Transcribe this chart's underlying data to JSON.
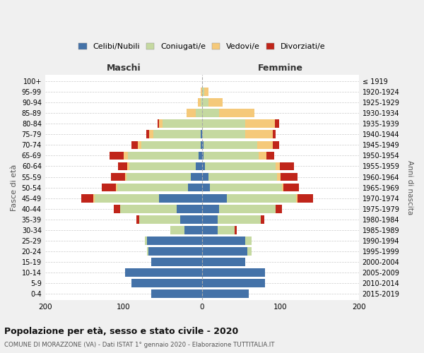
{
  "age_groups": [
    "0-4",
    "5-9",
    "10-14",
    "15-19",
    "20-24",
    "25-29",
    "30-34",
    "35-39",
    "40-44",
    "45-49",
    "50-54",
    "55-59",
    "60-64",
    "65-69",
    "70-74",
    "75-79",
    "80-84",
    "85-89",
    "90-94",
    "95-99",
    "100+"
  ],
  "birth_years": [
    "2015-2019",
    "2010-2014",
    "2005-2009",
    "2000-2004",
    "1995-1999",
    "1990-1994",
    "1985-1989",
    "1980-1984",
    "1975-1979",
    "1970-1974",
    "1965-1969",
    "1960-1964",
    "1955-1959",
    "1950-1954",
    "1945-1949",
    "1940-1944",
    "1935-1939",
    "1930-1934",
    "1925-1929",
    "1920-1924",
    "≤ 1919"
  ],
  "male": {
    "celibi": [
      65,
      90,
      98,
      65,
      68,
      70,
      22,
      28,
      32,
      55,
      18,
      14,
      8,
      4,
      2,
      2,
      0,
      0,
      0,
      0,
      0
    ],
    "coniugati": [
      0,
      0,
      0,
      0,
      2,
      3,
      18,
      52,
      72,
      82,
      90,
      82,
      85,
      90,
      75,
      60,
      50,
      8,
      2,
      0,
      0
    ],
    "vedovi": [
      0,
      0,
      0,
      0,
      0,
      0,
      0,
      0,
      0,
      2,
      2,
      2,
      2,
      6,
      5,
      5,
      5,
      12,
      3,
      2,
      0
    ],
    "divorziati": [
      0,
      0,
      0,
      0,
      0,
      0,
      0,
      4,
      8,
      15,
      18,
      18,
      12,
      18,
      8,
      4,
      2,
      0,
      0,
      0,
      0
    ]
  },
  "female": {
    "nubili": [
      60,
      80,
      80,
      55,
      58,
      55,
      20,
      20,
      22,
      32,
      10,
      8,
      4,
      2,
      2,
      0,
      0,
      0,
      0,
      0,
      0
    ],
    "coniugate": [
      0,
      0,
      0,
      0,
      5,
      8,
      22,
      55,
      72,
      88,
      92,
      88,
      90,
      70,
      68,
      55,
      55,
      22,
      8,
      3,
      0
    ],
    "vedove": [
      0,
      0,
      0,
      0,
      0,
      0,
      0,
      0,
      0,
      2,
      2,
      4,
      5,
      10,
      20,
      35,
      38,
      45,
      18,
      5,
      0
    ],
    "divorziate": [
      0,
      0,
      0,
      0,
      0,
      0,
      2,
      4,
      8,
      20,
      20,
      22,
      18,
      10,
      8,
      4,
      5,
      0,
      0,
      0,
      0
    ]
  },
  "colors": {
    "celibi": "#4472a8",
    "coniugati": "#c5d9a0",
    "vedovi": "#f5c97a",
    "divorziati": "#c0251a"
  },
  "title": "Popolazione per età, sesso e stato civile - 2020",
  "subtitle": "COMUNE DI MORAZZONE (VA) - Dati ISTAT 1° gennaio 2020 - Elaborazione TUTTITALIA.IT",
  "ylabel_left": "Fasce di età",
  "ylabel_right": "Anni di nascita",
  "xlabel_left": "Maschi",
  "xlabel_right": "Femmine",
  "xlim": 200,
  "legend_labels": [
    "Celibi/Nubili",
    "Coniugati/e",
    "Vedovi/e",
    "Divorziati/e"
  ],
  "background_color": "#f0f0f0",
  "plot_bg_color": "#ffffff"
}
